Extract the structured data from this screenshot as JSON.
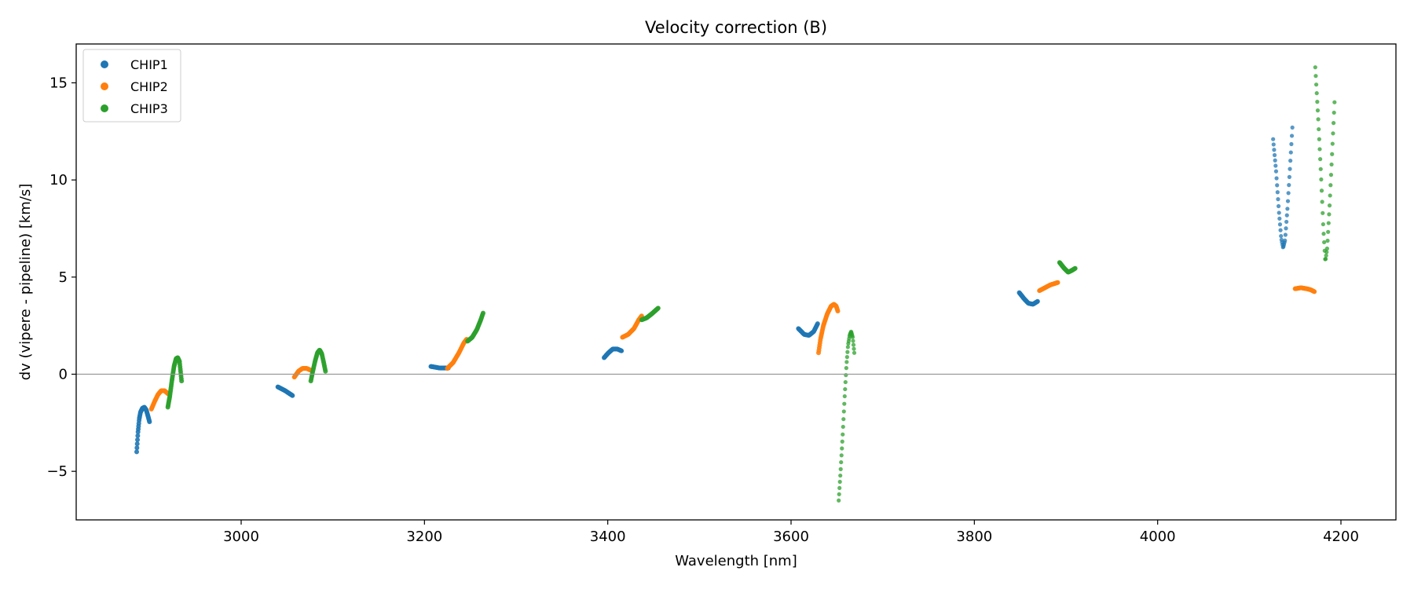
{
  "chart_data": {
    "type": "scatter",
    "title": "Velocity correction (B)",
    "xlabel": "Wavelength [nm]",
    "ylabel": "dv (vipere - pipeline) [km/s]",
    "xlim": [
      2820,
      4260
    ],
    "ylim": [
      -7.5,
      17
    ],
    "xticks": [
      3000,
      3200,
      3400,
      3600,
      3800,
      4000,
      4200
    ],
    "yticks": [
      -5,
      0,
      5,
      10,
      15
    ],
    "xtick_labels": [
      "3000",
      "3200",
      "3400",
      "3600",
      "3800",
      "4000",
      "4200"
    ],
    "ytick_labels": [
      "−5",
      "0",
      "5",
      "10",
      "15"
    ],
    "reference_line_y": 0,
    "legend_location": "upper-left",
    "series": [
      {
        "name": "CHIP1",
        "color": "#1f77b4",
        "segments": [
          {
            "x0": 2886,
            "x1": 2900,
            "points": [
              [
                0,
                -4.0
              ],
              [
                0.1,
                -3.0
              ],
              [
                0.2,
                -2.3
              ],
              [
                0.3,
                -1.95
              ],
              [
                0.45,
                -1.75
              ],
              [
                0.6,
                -1.7
              ],
              [
                0.75,
                -1.85
              ],
              [
                0.9,
                -2.2
              ],
              [
                1,
                -2.45
              ]
            ]
          },
          {
            "x0": 3040,
            "x1": 3056,
            "points": [
              [
                0,
                -0.65
              ],
              [
                0.5,
                -0.85
              ],
              [
                1,
                -1.1
              ]
            ]
          },
          {
            "x0": 3207,
            "x1": 3226,
            "points": [
              [
                0,
                0.4
              ],
              [
                0.5,
                0.32
              ],
              [
                1,
                0.32
              ]
            ]
          },
          {
            "x0": 3396,
            "x1": 3415,
            "points": [
              [
                0,
                0.85
              ],
              [
                0.25,
                1.1
              ],
              [
                0.5,
                1.3
              ],
              [
                0.75,
                1.3
              ],
              [
                1,
                1.2
              ]
            ]
          },
          {
            "x0": 3608,
            "x1": 3629,
            "points": [
              [
                0,
                2.35
              ],
              [
                0.3,
                2.05
              ],
              [
                0.55,
                2.0
              ],
              [
                0.8,
                2.2
              ],
              [
                1,
                2.6
              ]
            ]
          },
          {
            "x0": 3849,
            "x1": 3869,
            "points": [
              [
                0,
                4.2
              ],
              [
                0.25,
                3.9
              ],
              [
                0.5,
                3.65
              ],
              [
                0.75,
                3.6
              ],
              [
                1,
                3.75
              ]
            ]
          },
          {
            "x0": 4126,
            "x1": 4147,
            "points": [
              [
                0,
                12.1
              ],
              [
                0.15,
                10.5
              ],
              [
                0.3,
                8.4
              ],
              [
                0.42,
                7.0
              ],
              [
                0.52,
                6.5
              ],
              [
                0.62,
                6.9
              ],
              [
                0.75,
                8.6
              ],
              [
                0.88,
                10.7
              ],
              [
                1,
                12.7
              ]
            ]
          }
        ]
      },
      {
        "name": "CHIP2",
        "color": "#ff7f0e",
        "segments": [
          {
            "x0": 2902,
            "x1": 2920,
            "points": [
              [
                0,
                -1.8
              ],
              [
                0.2,
                -1.4
              ],
              [
                0.4,
                -1.05
              ],
              [
                0.6,
                -0.85
              ],
              [
                0.8,
                -0.85
              ],
              [
                1,
                -1.0
              ]
            ]
          },
          {
            "x0": 3058,
            "x1": 3076,
            "points": [
              [
                0,
                -0.15
              ],
              [
                0.25,
                0.15
              ],
              [
                0.5,
                0.3
              ],
              [
                0.75,
                0.3
              ],
              [
                1,
                0.2
              ]
            ]
          },
          {
            "x0": 3225,
            "x1": 3246,
            "points": [
              [
                0,
                0.3
              ],
              [
                0.3,
                0.6
              ],
              [
                0.6,
                1.1
              ],
              [
                0.85,
                1.6
              ],
              [
                1,
                1.8
              ]
            ]
          },
          {
            "x0": 3416,
            "x1": 3437,
            "points": [
              [
                0,
                1.9
              ],
              [
                0.3,
                2.05
              ],
              [
                0.6,
                2.35
              ],
              [
                0.85,
                2.8
              ],
              [
                1,
                3.0
              ]
            ]
          },
          {
            "x0": 3630,
            "x1": 3651,
            "points": [
              [
                0,
                1.1
              ],
              [
                0.1,
                1.8
              ],
              [
                0.25,
                2.5
              ],
              [
                0.45,
                3.1
              ],
              [
                0.65,
                3.5
              ],
              [
                0.8,
                3.6
              ],
              [
                0.92,
                3.5
              ],
              [
                1,
                3.25
              ]
            ]
          },
          {
            "x0": 3871,
            "x1": 3891,
            "points": [
              [
                0,
                4.3
              ],
              [
                0.3,
                4.45
              ],
              [
                0.6,
                4.6
              ],
              [
                1,
                4.72
              ]
            ]
          },
          {
            "x0": 4150,
            "x1": 4171,
            "points": [
              [
                0,
                4.4
              ],
              [
                0.3,
                4.45
              ],
              [
                0.6,
                4.4
              ],
              [
                0.8,
                4.35
              ],
              [
                1,
                4.25
              ]
            ]
          }
        ]
      },
      {
        "name": "CHIP3",
        "color": "#2ca02c",
        "segments": [
          {
            "x0": 2920,
            "x1": 2935,
            "points": [
              [
                0,
                -1.7
              ],
              [
                0.15,
                -1.1
              ],
              [
                0.3,
                -0.3
              ],
              [
                0.45,
                0.4
              ],
              [
                0.6,
                0.8
              ],
              [
                0.72,
                0.85
              ],
              [
                0.85,
                0.65
              ],
              [
                1,
                -0.35
              ]
            ]
          },
          {
            "x0": 3076,
            "x1": 3092,
            "points": [
              [
                0,
                -0.35
              ],
              [
                0.15,
                0.2
              ],
              [
                0.3,
                0.7
              ],
              [
                0.45,
                1.1
              ],
              [
                0.6,
                1.25
              ],
              [
                0.75,
                1.05
              ],
              [
                0.88,
                0.6
              ],
              [
                1,
                0.15
              ]
            ]
          },
          {
            "x0": 3247,
            "x1": 3264,
            "points": [
              [
                0,
                1.7
              ],
              [
                0.3,
                1.9
              ],
              [
                0.6,
                2.3
              ],
              [
                0.85,
                2.8
              ],
              [
                1,
                3.15
              ]
            ]
          },
          {
            "x0": 3437,
            "x1": 3455,
            "points": [
              [
                0,
                2.8
              ],
              [
                0.3,
                2.9
              ],
              [
                0.6,
                3.1
              ],
              [
                1,
                3.4
              ]
            ]
          },
          {
            "x0": 3652,
            "x1": 3669,
            "points": [
              [
                0,
                -6.5
              ],
              [
                0.12,
                -5.0
              ],
              [
                0.25,
                -3.2
              ],
              [
                0.38,
                -1.2
              ],
              [
                0.5,
                0.5
              ],
              [
                0.6,
                1.5
              ],
              [
                0.7,
                2.0
              ],
              [
                0.8,
                2.2
              ],
              [
                0.9,
                1.9
              ],
              [
                1,
                1.1
              ]
            ]
          },
          {
            "x0": 3893,
            "x1": 3910,
            "points": [
              [
                0,
                5.75
              ],
              [
                0.3,
                5.45
              ],
              [
                0.55,
                5.25
              ],
              [
                0.8,
                5.35
              ],
              [
                1,
                5.45
              ]
            ]
          },
          {
            "x0": 4172,
            "x1": 4193,
            "points": [
              [
                0,
                15.8
              ],
              [
                0.15,
                13.2
              ],
              [
                0.3,
                10.2
              ],
              [
                0.42,
                7.5
              ],
              [
                0.52,
                5.8
              ],
              [
                0.62,
                6.5
              ],
              [
                0.75,
                8.8
              ],
              [
                0.88,
                11.5
              ],
              [
                1,
                14.0
              ]
            ]
          }
        ]
      }
    ]
  }
}
